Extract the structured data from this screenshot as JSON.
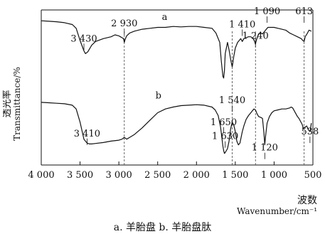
{
  "chart_data": {
    "type": "line",
    "xlabel_cn": "波数",
    "xlabel": "Wavenumber/cm⁻¹",
    "ylabel_cn": "透光率",
    "ylabel": "Transmittance/%",
    "xlim": [
      4000,
      500
    ],
    "x_ticks": [
      "4 000",
      "3 500",
      "3 000",
      "2 500",
      "2 000",
      "1 500",
      "1 000",
      "500"
    ],
    "x_tick_values": [
      4000,
      3500,
      3000,
      2500,
      2000,
      1500,
      1000,
      500
    ],
    "ylim": [
      0,
      100
    ],
    "reference_lines": [
      2930,
      1540,
      1240,
      613
    ],
    "series": [
      {
        "name": "a",
        "x": [
          4000,
          3900,
          3800,
          3700,
          3600,
          3550,
          3500,
          3450,
          3430,
          3400,
          3350,
          3300,
          3200,
          3100,
          3050,
          3000,
          2980,
          2960,
          2940,
          2930,
          2920,
          2900,
          2860,
          2800,
          2700,
          2600,
          2500,
          2400,
          2300,
          2200,
          2100,
          2000,
          1900,
          1800,
          1750,
          1700,
          1680,
          1660,
          1650,
          1640,
          1630,
          1600,
          1580,
          1560,
          1545,
          1540,
          1535,
          1520,
          1500,
          1470,
          1450,
          1430,
          1410,
          1390,
          1360,
          1330,
          1300,
          1270,
          1250,
          1240,
          1230,
          1200,
          1170,
          1150,
          1120,
          1100,
          1090,
          1080,
          1050,
          1000,
          950,
          900,
          850,
          800,
          750,
          700,
          650,
          630,
          613,
          600,
          570,
          550,
          520
        ],
        "values": [
          93,
          92.5,
          92,
          91,
          89,
          85,
          72,
          61,
          58,
          60,
          67,
          71,
          74,
          76,
          78,
          77,
          76,
          75,
          74,
          70,
          73,
          77,
          80,
          82,
          84,
          85,
          86,
          86,
          87,
          86.5,
          87,
          87,
          86,
          85,
          80,
          70,
          50,
          34,
          32,
          40,
          58,
          70,
          62,
          52,
          46,
          44,
          46,
          55,
          64,
          70,
          72,
          74,
          71,
          74,
          75,
          76,
          76,
          74,
          71,
          68,
          72,
          79,
          80,
          79,
          82,
          84,
          85,
          86,
          86,
          86,
          85,
          84,
          83,
          80,
          78,
          76,
          74,
          72,
          71,
          76,
          80,
          83,
          82
        ]
      },
      {
        "name": "b",
        "x": [
          4000,
          3900,
          3800,
          3700,
          3600,
          3550,
          3500,
          3450,
          3410,
          3380,
          3350,
          3300,
          3200,
          3100,
          3000,
          2960,
          2930,
          2900,
          2860,
          2800,
          2700,
          2600,
          2500,
          2400,
          2300,
          2200,
          2100,
          2000,
          1900,
          1800,
          1760,
          1720,
          1690,
          1660,
          1650,
          1640,
          1630,
          1600,
          1580,
          1560,
          1540,
          1520,
          1500,
          1480,
          1460,
          1440,
          1410,
          1390,
          1360,
          1330,
          1300,
          1280,
          1260,
          1240,
          1220,
          1200,
          1170,
          1150,
          1130,
          1120,
          1110,
          1090,
          1060,
          1030,
          1000,
          950,
          900,
          850,
          800,
          780,
          760,
          740,
          720,
          700,
          680,
          660,
          640,
          620,
          600,
          580,
          560,
          538,
          520
        ],
        "values": [
          61,
          60.5,
          60,
          59.5,
          58,
          54,
          40,
          22,
          18,
          17,
          17,
          17.5,
          18.5,
          20,
          21,
          22,
          24,
          22,
          24,
          27,
          34,
          42,
          50,
          54,
          56,
          57.5,
          58,
          58.5,
          58,
          56,
          53,
          47,
          35,
          15,
          10,
          7,
          8,
          12,
          20,
          33,
          40,
          37,
          30,
          20,
          16,
          18,
          30,
          36,
          43,
          47,
          50,
          52,
          54,
          53,
          49,
          46,
          45,
          44,
          28,
          16,
          25,
          39,
          46,
          50,
          52,
          53,
          54,
          54,
          55,
          56,
          55,
          52,
          49,
          46,
          44,
          41,
          38,
          33,
          35,
          36,
          32,
          30,
          39
        ]
      }
    ],
    "annotations": [
      {
        "text": "a",
        "x": 2410,
        "y": 94
      },
      {
        "text": "b",
        "x": 2490,
        "y": 65
      },
      {
        "text": "2 930",
        "x": 2930,
        "y": 87
      },
      {
        "text": "3 430",
        "x": 3450,
        "y": 71
      },
      {
        "text": "1 090",
        "x": 1090,
        "y": 100
      },
      {
        "text": "613",
        "x": 613,
        "y": 100
      },
      {
        "text": "1 410",
        "x": 1410,
        "y": 86
      },
      {
        "text": "1 240",
        "x": 1240,
        "y": 74
      },
      {
        "text": "1 540",
        "x": 1540,
        "y": 60
      },
      {
        "text": "1 650",
        "x": 1650,
        "y": 37
      },
      {
        "text": "3 410",
        "x": 3410,
        "y": 25
      },
      {
        "text": "1 630",
        "x": 1630,
        "y": 22
      },
      {
        "text": "538",
        "x": 538,
        "y": 27
      },
      {
        "text": "1 120",
        "x": 1120,
        "y": 10
      }
    ],
    "caption": "a. 羊胎盘    b. 羊胎盘肽",
    "grid": false,
    "legend": "none"
  }
}
